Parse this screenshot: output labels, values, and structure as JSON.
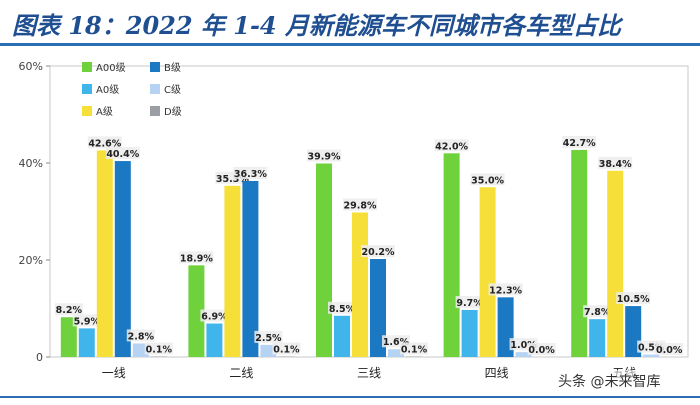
{
  "header": {
    "title": "图表 18：2022 年 1-4 月新能源车不同城市各车型占比"
  },
  "watermark": {
    "text": "头条 @未来智库"
  },
  "chart_data": {
    "type": "bar",
    "title": "图表 18：2022 年 1-4 月新能源车不同城市各车型占比",
    "xlabel": "",
    "ylabel": "",
    "ylim": [
      0,
      60
    ],
    "yticks": [
      "0",
      "20%",
      "40%",
      "60%"
    ],
    "grid": false,
    "legend_position": "top-left",
    "categories": [
      "一线",
      "二线",
      "三线",
      "四线",
      "五线"
    ],
    "series": [
      {
        "name": "A00级",
        "color": "#6fd23c",
        "values": [
          8.2,
          18.9,
          39.9,
          42.0,
          42.7
        ],
        "labels": [
          "8.2%",
          "18.9%",
          "39.9%",
          "42.0%",
          "42.7%"
        ]
      },
      {
        "name": "A0级",
        "color": "#3fb5ec",
        "values": [
          5.9,
          6.9,
          8.5,
          9.7,
          7.8
        ],
        "labels": [
          "5.9%",
          "6.9%",
          "8.5%",
          "9.7%",
          "7.8%"
        ]
      },
      {
        "name": "A级",
        "color": "#f5df38",
        "values": [
          42.6,
          35.3,
          29.8,
          35.0,
          38.4
        ],
        "labels": [
          "42.6%",
          "35.3%",
          "29.8%",
          "35.0%",
          "38.4%"
        ]
      },
      {
        "name": "B级",
        "color": "#1b78c2",
        "values": [
          40.4,
          36.3,
          20.2,
          12.3,
          10.5
        ],
        "labels": [
          "40.4%",
          "36.3%",
          "20.2%",
          "12.3%",
          "10.5%"
        ]
      },
      {
        "name": "C级",
        "color": "#b7d3f4",
        "values": [
          2.8,
          2.5,
          1.6,
          1.0,
          0.5
        ],
        "labels": [
          "2.8%",
          "2.5%",
          "1.6%",
          "1.0%",
          "0.5%"
        ]
      },
      {
        "name": "D级",
        "color": "#9b9ea4",
        "values": [
          0.1,
          0.1,
          0.1,
          0.0,
          0.0
        ],
        "labels": [
          "0.1%",
          "0.1%",
          "0.1%",
          "0.0%",
          "0.0%"
        ]
      }
    ]
  }
}
